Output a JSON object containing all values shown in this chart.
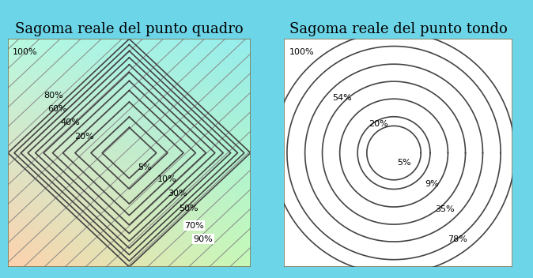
{
  "title_left": "Sagoma reale del punto quadro",
  "title_right": "Sagoma reale del punto tondo",
  "title_fontsize": 13,
  "outer_bg": "#6dd5e8",
  "square_levels": [
    5,
    10,
    20,
    30,
    40,
    50,
    60,
    70,
    80,
    90,
    100
  ],
  "circle_levels": [
    5,
    9,
    20,
    35,
    54,
    78,
    100
  ],
  "line_color": "#444444",
  "hatch_color": "#888888",
  "hatch_lw": 0.7,
  "diamond_lw": 1.2,
  "circle_lw": 1.2,
  "bl": [
    1.0,
    0.82,
    0.68
  ],
  "br": [
    0.78,
    0.98,
    0.72
  ],
  "tl": [
    0.72,
    0.98,
    0.88
  ],
  "tr": [
    0.58,
    0.93,
    0.93
  ]
}
